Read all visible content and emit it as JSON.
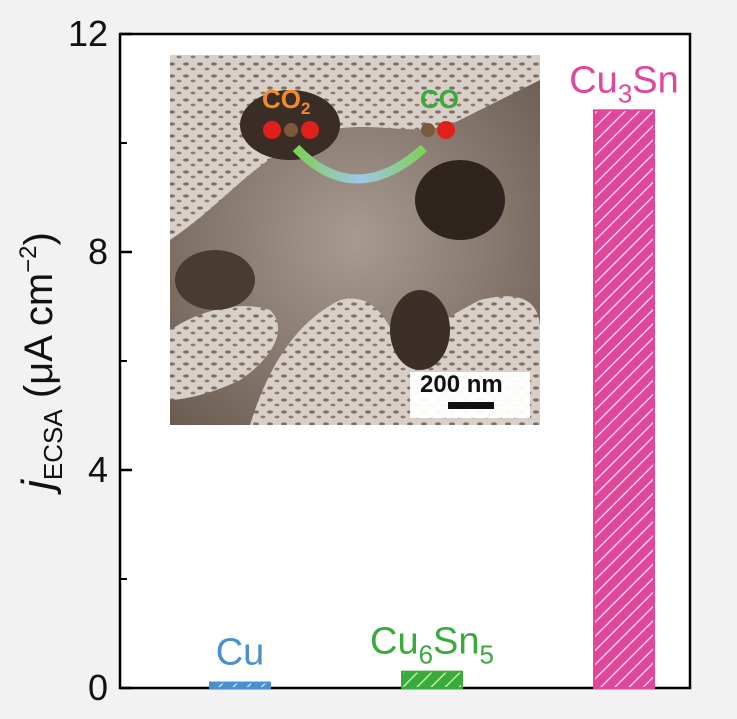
{
  "chart_data": {
    "type": "bar",
    "categories": [
      "Cu",
      "Cu6Sn5",
      "Cu3Sn"
    ],
    "category_labels": [
      {
        "base": "Cu",
        "sub1": "",
        "mid": "",
        "sub2": ""
      },
      {
        "base": "Cu",
        "sub1": "6",
        "mid": "Sn",
        "sub2": "5"
      },
      {
        "base": "Cu",
        "sub1": "3",
        "mid": "Sn",
        "sub2": ""
      }
    ],
    "values": [
      0.1,
      0.3,
      10.6
    ],
    "colors": [
      "#4a8fd0",
      "#3aaa3a",
      "#e0479a"
    ],
    "ylabel": {
      "j": "j",
      "sub": "ECSA",
      "unit_open": " (μA cm",
      "sup": "−2",
      "unit_close": ")"
    },
    "ylim": [
      0,
      12
    ],
    "yticks": [
      "0",
      "4",
      "8",
      "12"
    ],
    "legend": "none",
    "grid": false
  },
  "inset": {
    "co2_label": {
      "base": "CO",
      "sub": "2"
    },
    "co_label": "CO",
    "scale_bar": "200 nm"
  }
}
